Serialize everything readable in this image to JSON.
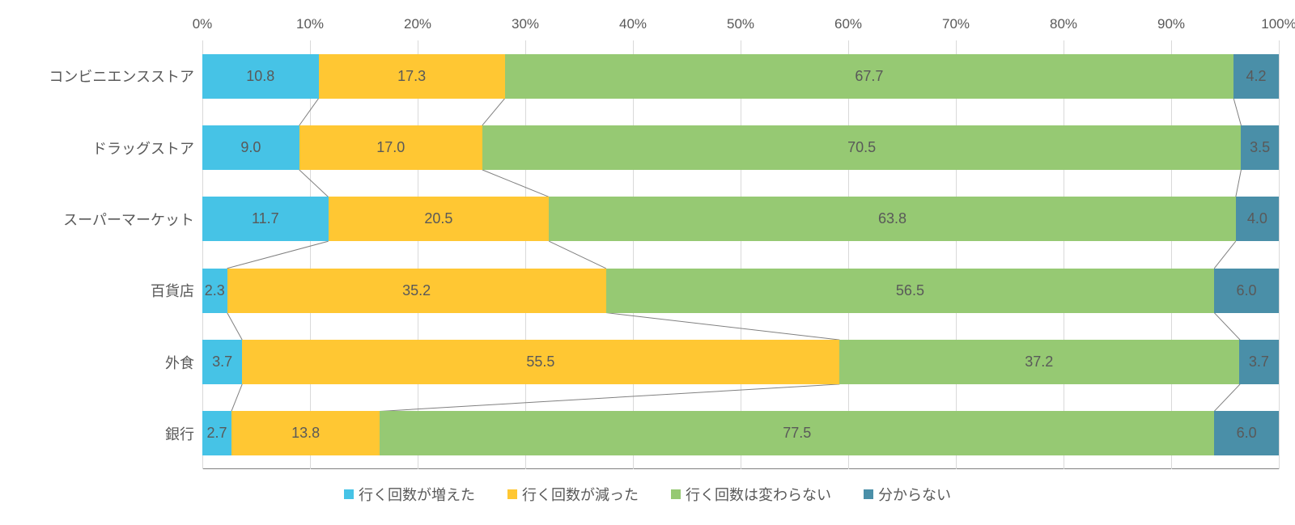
{
  "chart": {
    "type": "stacked-bar-horizontal",
    "background_color": "#ffffff",
    "grid_color": "#d9d9d9",
    "baseline_color": "#808080",
    "text_color": "#595959",
    "label_fontsize": 18,
    "axis_fontsize": 17,
    "x_ticks": [
      "0%",
      "10%",
      "20%",
      "30%",
      "40%",
      "50%",
      "60%",
      "70%",
      "80%",
      "90%",
      "100%"
    ],
    "x_tick_positions": [
      0,
      10,
      20,
      30,
      40,
      50,
      60,
      70,
      80,
      90,
      100
    ],
    "categories": [
      "コンビニエンスストア",
      "ドラッグストア",
      "スーパーマーケット",
      "百貨店",
      "外食",
      "銀行"
    ],
    "series": [
      {
        "name": "行く回数が増えた",
        "color": "#46c3e6"
      },
      {
        "name": "行く回数が減った",
        "color": "#ffc733"
      },
      {
        "name": "行く回数は変わらない",
        "color": "#96c973"
      },
      {
        "name": "分からない",
        "color": "#4a8fa8"
      }
    ],
    "data": [
      [
        10.8,
        17.3,
        67.7,
        4.2
      ],
      [
        9.0,
        17.0,
        70.5,
        3.5
      ],
      [
        11.7,
        20.5,
        63.8,
        4.0
      ],
      [
        2.3,
        35.2,
        56.5,
        6.0
      ],
      [
        3.7,
        55.5,
        37.2,
        3.7
      ],
      [
        2.7,
        13.8,
        77.5,
        6.0
      ]
    ],
    "value_labels": [
      [
        "10.8",
        "17.3",
        "67.7",
        "4.2"
      ],
      [
        "9.0",
        "17.0",
        "70.5",
        "3.5"
      ],
      [
        "11.7",
        "20.5",
        "63.8",
        "4.0"
      ],
      [
        "2.3",
        "35.2",
        "56.5",
        "6.0"
      ],
      [
        "3.7",
        "55.5",
        "37.2",
        "3.7"
      ],
      [
        "2.7",
        "13.8",
        "77.5",
        "6.0"
      ]
    ],
    "bar_height_ratio": 0.62,
    "connector_color": "#808080",
    "connector_width": 1
  }
}
